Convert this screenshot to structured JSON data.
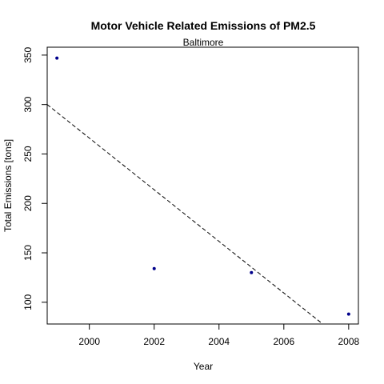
{
  "chart_data": {
    "type": "scatter",
    "title": "Motor Vehicle Related Emissions of PM2.5",
    "subtitle": "Baltimore",
    "xlabel": "Year",
    "ylabel": "Total Emissions [tons]",
    "xlim": [
      1998.7,
      2008.3
    ],
    "ylim": [
      78,
      358
    ],
    "x_ticks": [
      2000,
      2002,
      2004,
      2006,
      2008
    ],
    "y_ticks": [
      100,
      150,
      200,
      250,
      300,
      350
    ],
    "grid": false,
    "legend": "none",
    "series": [
      {
        "x": [
          1999,
          2002,
          2005,
          2008
        ],
        "y": [
          347,
          134,
          130,
          88
        ],
        "marker_color": "#00008b"
      }
    ],
    "trend_line": {
      "style": "dashed",
      "color": "#000000",
      "points": [
        [
          1998.7,
          300
        ],
        [
          2007.2,
          78
        ]
      ]
    }
  }
}
